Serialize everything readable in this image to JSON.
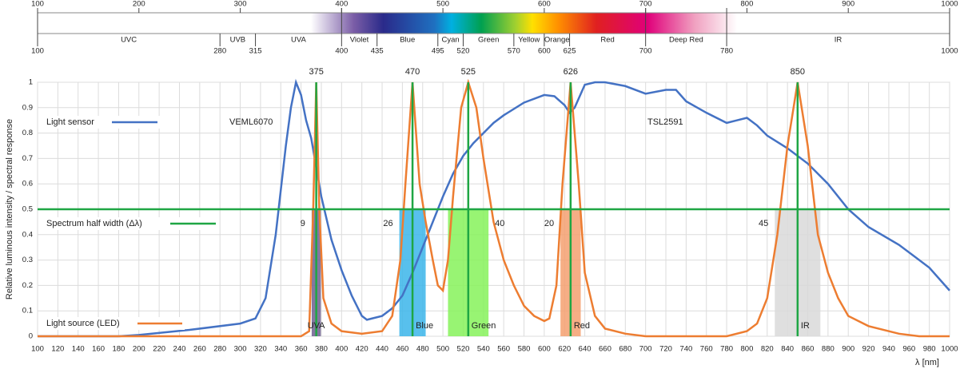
{
  "chart_data": [
    {
      "type": "spectrum",
      "xlim": [
        100,
        1000
      ],
      "xticks": [
        100,
        200,
        300,
        400,
        500,
        600,
        700,
        800,
        900,
        1000
      ],
      "boundaries": [
        100,
        280,
        315,
        400,
        435,
        495,
        520,
        570,
        600,
        625,
        700,
        780,
        1000
      ],
      "regions": [
        "UVC",
        "UVB",
        "UVA",
        "Violet",
        "Blue",
        "Cyan",
        "Green",
        "Yellow",
        "Orange",
        "Red",
        "Deep Red",
        "IR"
      ]
    },
    {
      "type": "line",
      "xlabel": "λ [nm]",
      "ylabel": "Relative luminous intensity / spectral response",
      "xlim": [
        100,
        1000
      ],
      "xticks": [
        100,
        120,
        140,
        160,
        180,
        200,
        220,
        240,
        260,
        280,
        300,
        320,
        340,
        360,
        380,
        400,
        420,
        440,
        460,
        480,
        500,
        520,
        540,
        560,
        580,
        600,
        620,
        640,
        660,
        680,
        700,
        720,
        740,
        760,
        780,
        800,
        820,
        840,
        860,
        880,
        900,
        920,
        940,
        960,
        980,
        1000
      ],
      "ylim": [
        0,
        1
      ],
      "yticks": [
        0,
        0.1,
        0.2,
        0.3,
        0.4,
        0.5,
        0.6,
        0.7,
        0.8,
        0.9,
        1
      ],
      "grid": true,
      "annotations": [
        "VEML6070",
        "TSL2591"
      ],
      "series": [
        {
          "name": "Light sensor",
          "color": "#4472c4",
          "x": [
            100,
            180,
            200,
            250,
            300,
            315,
            325,
            335,
            345,
            350,
            355,
            360,
            365,
            370,
            380,
            390,
            400,
            410,
            420,
            425,
            430,
            440,
            450,
            460,
            470,
            480,
            490,
            500,
            510,
            520,
            530,
            540,
            550,
            560,
            580,
            600,
            610,
            620,
            625,
            630,
            640,
            650,
            660,
            680,
            700,
            720,
            730,
            740,
            760,
            780,
            790,
            800,
            810,
            820,
            840,
            860,
            880,
            900,
            920,
            950,
            980,
            1000
          ],
          "values": [
            0,
            0,
            0.005,
            0.025,
            0.05,
            0.07,
            0.15,
            0.4,
            0.75,
            0.9,
            1,
            0.95,
            0.85,
            0.78,
            0.55,
            0.38,
            0.26,
            0.16,
            0.08,
            0.065,
            0.07,
            0.08,
            0.11,
            0.16,
            0.25,
            0.35,
            0.45,
            0.55,
            0.64,
            0.71,
            0.76,
            0.8,
            0.84,
            0.87,
            0.92,
            0.95,
            0.945,
            0.91,
            0.88,
            0.9,
            0.99,
            1,
            1,
            0.985,
            0.955,
            0.97,
            0.97,
            0.925,
            0.88,
            0.84,
            0.85,
            0.86,
            0.83,
            0.79,
            0.74,
            0.68,
            0.6,
            0.5,
            0.43,
            0.36,
            0.27,
            0.18
          ]
        },
        {
          "name": "Light source (LED)",
          "color": "#ed7d31",
          "x": [
            100,
            360,
            368,
            372,
            375,
            378,
            382,
            390,
            400,
            420,
            440,
            450,
            458,
            463,
            470,
            477,
            483,
            490,
            495,
            500,
            505,
            510,
            518,
            525,
            533,
            540,
            550,
            560,
            570,
            580,
            590,
            600,
            605,
            612,
            618,
            626,
            634,
            640,
            650,
            660,
            680,
            700,
            780,
            800,
            810,
            820,
            830,
            840,
            850,
            860,
            870,
            880,
            890,
            900,
            920,
            950,
            970,
            1000
          ],
          "values": [
            0,
            0,
            0.02,
            0.5,
            1,
            0.5,
            0.15,
            0.05,
            0.02,
            0.01,
            0.02,
            0.08,
            0.3,
            0.6,
            1,
            0.6,
            0.45,
            0.3,
            0.2,
            0.18,
            0.3,
            0.55,
            0.9,
            1,
            0.9,
            0.7,
            0.45,
            0.3,
            0.2,
            0.12,
            0.08,
            0.06,
            0.07,
            0.2,
            0.6,
            1,
            0.6,
            0.25,
            0.08,
            0.03,
            0.01,
            0,
            0,
            0.02,
            0.05,
            0.15,
            0.4,
            0.75,
            1,
            0.75,
            0.4,
            0.25,
            0.15,
            0.08,
            0.04,
            0.01,
            0,
            0
          ]
        },
        {
          "name": "Spectrum half width (Δλ)",
          "color": "#1fa644",
          "x": [
            100,
            1000
          ],
          "values": [
            0.5,
            0.5
          ]
        }
      ],
      "peaks": [
        375,
        470,
        525,
        626,
        850
      ],
      "half_widths": [
        9,
        26,
        40,
        20,
        45
      ],
      "band_names": [
        "UVA",
        "Blue",
        "Green",
        "Red",
        "IR"
      ],
      "band_colors": [
        "#6f5f8f",
        "#3bb5ea",
        "#86f25a",
        "#f4a070",
        "#d9d9d9"
      ]
    }
  ]
}
